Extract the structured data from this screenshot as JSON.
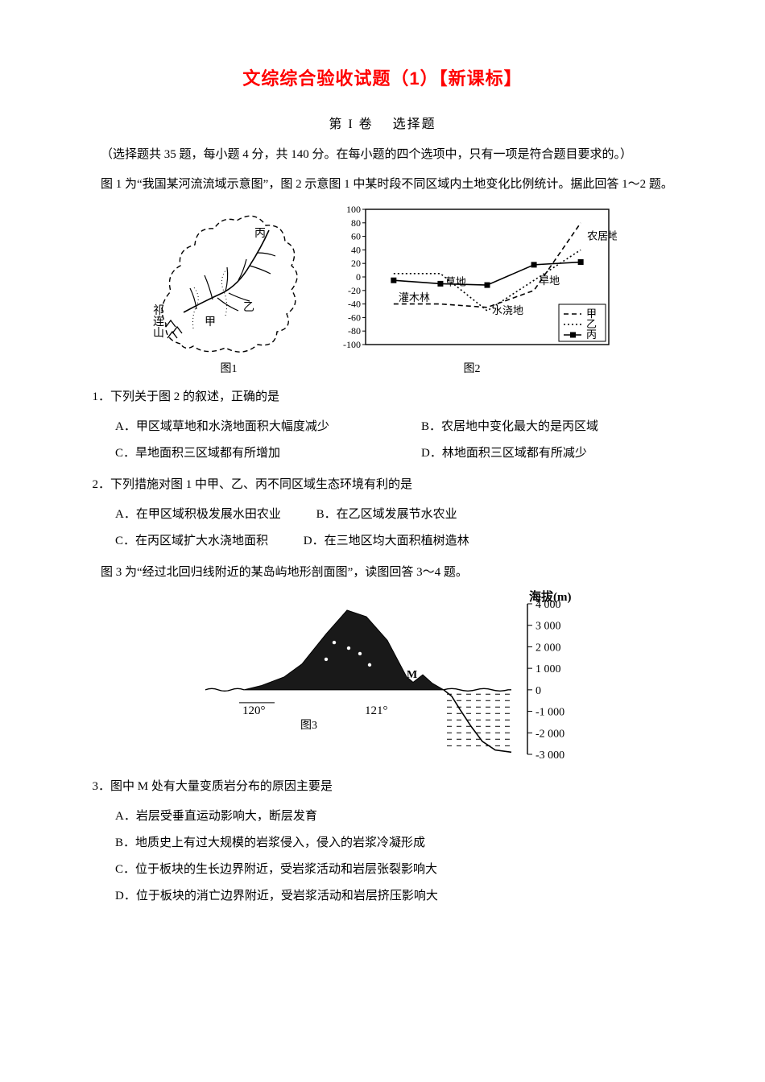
{
  "title": "文综综合验收试题（1）【新课标】",
  "subtitle_part1": "第 I 卷",
  "subtitle_part2": "选择题",
  "intro1": "（选择题共 35 题，每小题 4 分，共 140 分。在每小题的四个选项中，只有一项是符合题目要求的。）",
  "intro2": "图 1 为“我国某河流流域示意图”，图 2 示意图 1 中某时段不同区域内土地变化比例统计。据此回答 1～2 题。",
  "fig1": {
    "caption": "图1",
    "labels": {
      "qilian": "祁连山",
      "jia": "甲",
      "yi": "乙",
      "bing": "丙"
    }
  },
  "fig2": {
    "caption": "图2",
    "y_ticks": [
      -100,
      -80,
      -60,
      -40,
      -20,
      0,
      20,
      40,
      60,
      80,
      100
    ],
    "categories": [
      "灌木林",
      "草地",
      "水浇地",
      "旱地",
      "农居地"
    ],
    "series": {
      "jia": {
        "label": "甲",
        "values": [
          -40,
          -40,
          -45,
          -20,
          80
        ],
        "dash": "6,4"
      },
      "yi": {
        "label": "乙",
        "values": [
          5,
          5,
          -50,
          -5,
          40
        ],
        "dash": "2,3"
      },
      "bing": {
        "label": "丙",
        "values": [
          -5,
          -10,
          -12,
          18,
          22
        ],
        "dash": "none",
        "marker": "square"
      }
    },
    "stroke": "#000000"
  },
  "q1": {
    "stem": "1．下列关于图 2 的叙述，正确的是",
    "A": "A．甲区域草地和水浇地面积大幅度减少",
    "B": "B．农居地中变化最大的是丙区域",
    "C": "C．旱地面积三区域都有所增加",
    "D": "D．林地面积三区域都有所减少"
  },
  "q2": {
    "stem": "2．下列措施对图 1 中甲、乙、丙不同区域生态环境有利的是",
    "A": "A．在甲区域积极发展水田农业",
    "B": "B．在乙区域发展节水农业",
    "C": "C．在丙区域扩大水浇地面积",
    "D": "D．在三地区均大面积植树造林"
  },
  "intro3": "图 3 为“经过北回归线附近的某岛屿地形剖面图”，读图回答 3～4 题。",
  "fig3": {
    "caption": "图3",
    "x_labels": [
      "120°",
      "121°"
    ],
    "y_title": "海拔(m)",
    "y_ticks": [
      4000,
      3000,
      2000,
      1000,
      0,
      -1000,
      -2000,
      -3000
    ],
    "label_M": "M",
    "stroke": "#000000"
  },
  "q3": {
    "stem": "3．图中 M 处有大量变质岩分布的原因主要是",
    "A": "A．岩层受垂直运动影响大，断层发育",
    "B": "B．地质史上有过大规模的岩浆侵入，侵入的岩浆冷凝形成",
    "C": "C．位于板块的生长边界附近，受岩浆活动和岩层张裂影响大",
    "D": "D．位于板块的消亡边界附近，受岩浆活动和岩层挤压影响大"
  }
}
